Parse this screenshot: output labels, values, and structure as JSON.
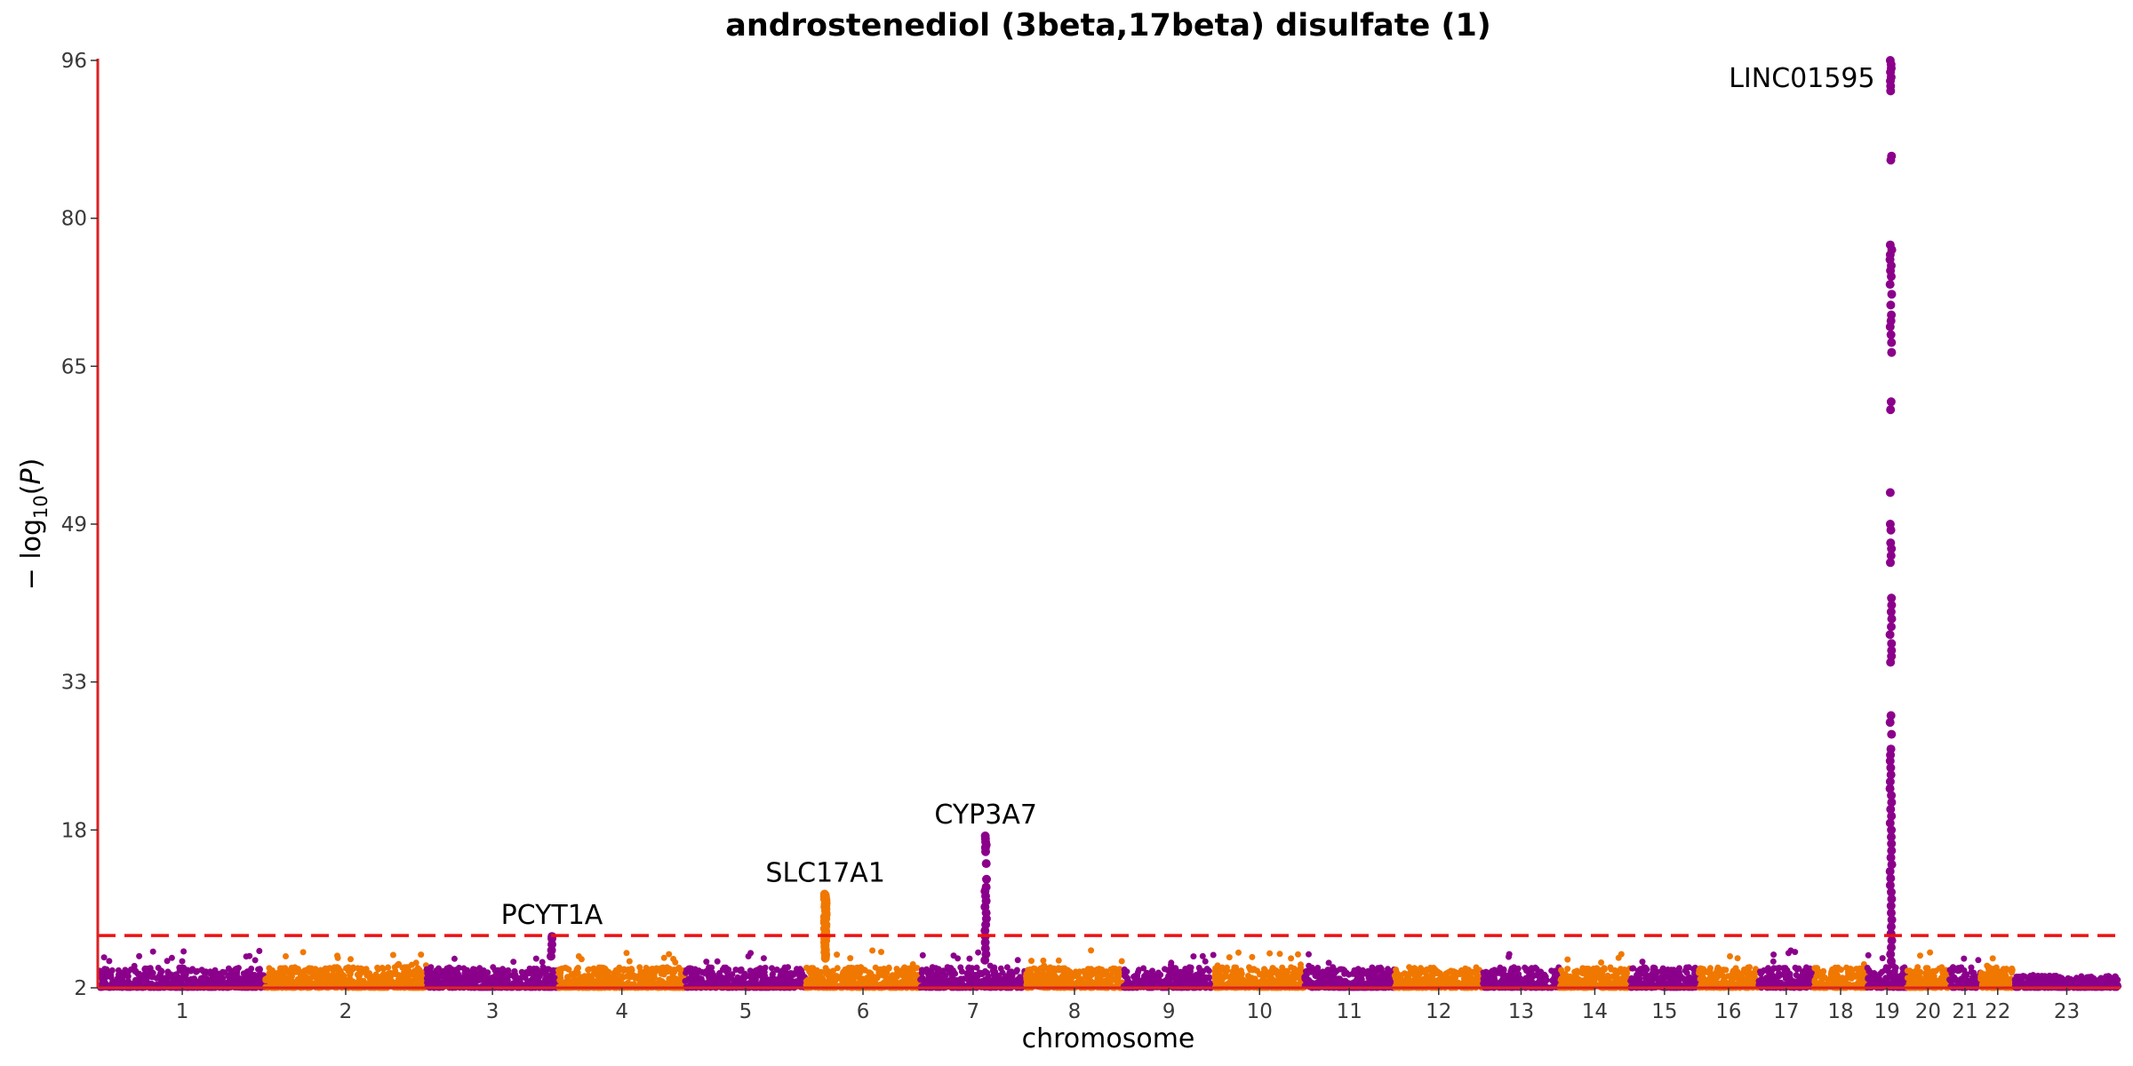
{
  "chart_data": {
    "type": "scatter",
    "title": "androstenediol (3beta,17beta) disulfate (1)",
    "xlabel": "chromosome",
    "ylabel": "− log10(P)",
    "ylim": [
      2,
      96
    ],
    "y_ticks": [
      "2",
      "18",
      "33",
      "49",
      "65",
      "80",
      "96"
    ],
    "y_tick_values": [
      2,
      18,
      33,
      49,
      65,
      80,
      96
    ],
    "threshold": 7.3,
    "colors": {
      "odd": "#8B008B",
      "even": "#F07800",
      "threshold": "#EE1111",
      "axis": "#DD2222"
    },
    "chromosomes": [
      {
        "label": "1",
        "length": 248
      },
      {
        "label": "2",
        "length": 242
      },
      {
        "label": "3",
        "length": 198
      },
      {
        "label": "4",
        "length": 190
      },
      {
        "label": "5",
        "length": 181
      },
      {
        "label": "6",
        "length": 171
      },
      {
        "label": "7",
        "length": 159
      },
      {
        "label": "8",
        "length": 145
      },
      {
        "label": "9",
        "length": 138
      },
      {
        "label": "10",
        "length": 134
      },
      {
        "label": "11",
        "length": 135
      },
      {
        "label": "12",
        "length": 133
      },
      {
        "label": "13",
        "length": 114
      },
      {
        "label": "14",
        "length": 107
      },
      {
        "label": "15",
        "length": 102
      },
      {
        "label": "16",
        "length": 90
      },
      {
        "label": "17",
        "length": 83
      },
      {
        "label": "18",
        "length": 80
      },
      {
        "label": "19",
        "length": 59
      },
      {
        "label": "20",
        "length": 64
      },
      {
        "label": "21",
        "length": 47
      },
      {
        "label": "22",
        "length": 51
      },
      {
        "label": "23",
        "length": 156
      }
    ],
    "peaks": [
      {
        "gene": "PCYT1A",
        "chrom": "3",
        "pos": 0.95,
        "max": 7.2,
        "values": [
          7.2,
          7.0,
          6.4,
          5.8,
          5.2
        ]
      },
      {
        "gene": "SLC17A1",
        "chrom": "6",
        "pos": 0.17,
        "max": 11.5,
        "values": [
          11.5,
          11.4,
          11.3,
          11.2,
          11.1,
          11.0,
          10.9,
          10.8,
          10.7,
          10.6,
          10.5,
          10.4,
          10.3,
          10.2,
          10.0,
          9.8,
          9.6,
          9.4,
          9.2,
          9.0,
          8.8,
          8.6,
          8.4,
          8.2,
          8.0,
          7.8,
          7.6,
          7.4,
          7.2,
          7.0,
          6.8,
          6.6,
          6.4,
          6.2,
          6.0,
          5.8,
          5.6,
          5.4,
          5.2,
          5.0
        ]
      },
      {
        "gene": "CYP3A7",
        "chrom": "7",
        "pos": 0.62,
        "max": 17.4,
        "values": [
          17.4,
          17.1,
          16.8,
          16.5,
          16.2,
          15.8,
          14.6,
          13.0,
          12.2,
          11.8,
          11.3,
          10.8,
          10.2,
          9.6,
          9.0,
          8.4,
          7.8,
          7.2,
          6.6,
          6.0,
          5.4,
          4.8
        ]
      },
      {
        "gene": "LINC01595",
        "chrom": "19",
        "pos": 0.6,
        "max": 96,
        "values": [
          96,
          95.6,
          95.2,
          94.8,
          94.3,
          93.9,
          93.4,
          92.9,
          86.3,
          85.9,
          77.3,
          76.8,
          76.3,
          75.8,
          75.2,
          74.7,
          74.1,
          73.3,
          72.3,
          71.2,
          70.2,
          69.6,
          69.0,
          68.2,
          67.4,
          66.4,
          61.4,
          60.6,
          52.2,
          49.0,
          48.4,
          47.1,
          46.5,
          45.8,
          45.1,
          41.5,
          40.8,
          40.1,
          39.4,
          38.6,
          37.8,
          36.9,
          36.2,
          35.6,
          35.0,
          29.6,
          28.9,
          27.7,
          26.2,
          25.6,
          25.0,
          24.3,
          23.6,
          22.9,
          22.2,
          21.5,
          20.8,
          20.1,
          19.4,
          18.7,
          18.0,
          17.3,
          16.6,
          15.9,
          15.2,
          14.5,
          13.8,
          13.1,
          12.4,
          11.7,
          11.0,
          10.3,
          9.6,
          8.9,
          8.2,
          7.5,
          6.8,
          6.1,
          5.4,
          4.7
        ]
      }
    ]
  }
}
